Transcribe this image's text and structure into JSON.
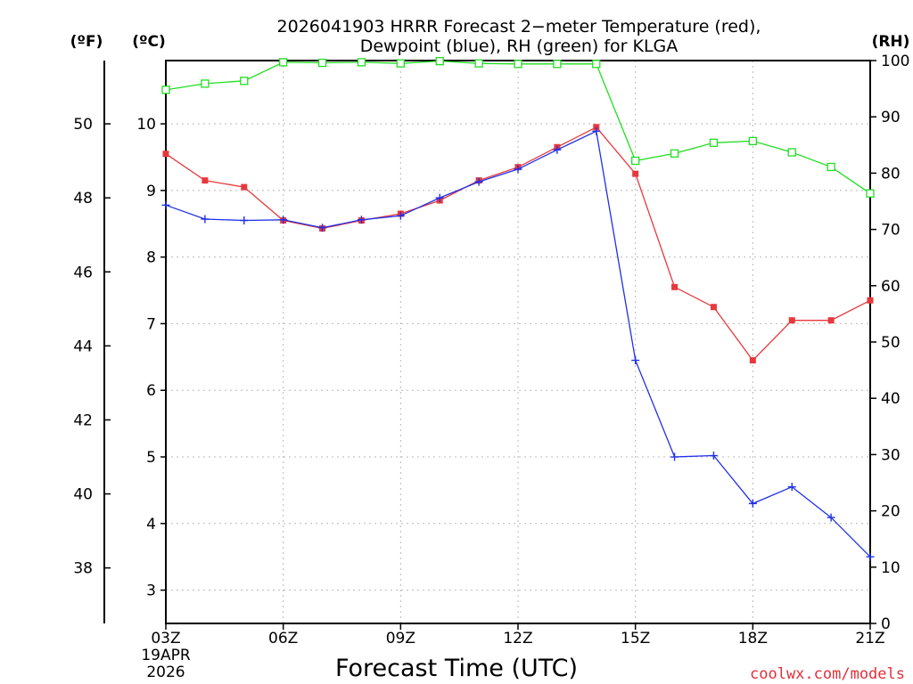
{
  "chart_data": {
    "type": "line",
    "title_line1": "2026041903 HRRR Forecast 2−meter Temperature (red),",
    "title_line2": "Dewpoint (blue), RH (green) for KLGA",
    "xlabel": "Forecast Time (UTC)",
    "credit": "coolwx.com/models",
    "unit_f": "(ºF)",
    "unit_c": "(ºC)",
    "unit_rh": "(RH)",
    "x_hours": [
      3,
      4,
      5,
      6,
      7,
      8,
      9,
      10,
      11,
      12,
      13,
      14,
      15,
      16,
      17,
      18,
      19,
      20,
      21
    ],
    "x_ticks": [
      {
        "hour": 3,
        "label": "03Z"
      },
      {
        "hour": 6,
        "label": "06Z"
      },
      {
        "hour": 9,
        "label": "09Z"
      },
      {
        "hour": 12,
        "label": "12Z"
      },
      {
        "hour": 15,
        "label": "15Z"
      },
      {
        "hour": 18,
        "label": "18Z"
      },
      {
        "hour": 21,
        "label": "21Z"
      }
    ],
    "date_label_line1": "19APR",
    "date_label_line2": "2026",
    "xlim": [
      3,
      21
    ],
    "ylim_c": [
      2.5,
      10.95
    ],
    "ylim_rh": [
      0,
      100
    ],
    "y_ticks_c": [
      "3",
      "4",
      "5",
      "6",
      "7",
      "8",
      "9",
      "10"
    ],
    "y_ticks_f": [
      "38",
      "40",
      "42",
      "44",
      "46",
      "48",
      "50"
    ],
    "y_ticks_rh": [
      "0",
      "10",
      "20",
      "30",
      "40",
      "50",
      "60",
      "70",
      "80",
      "90",
      "100"
    ],
    "series": [
      {
        "name": "Temperature",
        "unit": "°C",
        "color": "#e8383c",
        "marker": "filled-square",
        "values": [
          9.55,
          9.15,
          9.05,
          8.55,
          8.43,
          8.55,
          8.65,
          8.85,
          9.15,
          9.35,
          9.65,
          9.95,
          9.25,
          7.55,
          7.25,
          6.45,
          7.05,
          7.05,
          7.35
        ]
      },
      {
        "name": "Dewpoint",
        "unit": "°C",
        "color": "#2030e8",
        "marker": "plus",
        "values": [
          8.78,
          8.57,
          8.55,
          8.56,
          8.44,
          8.56,
          8.62,
          8.89,
          9.13,
          9.32,
          9.61,
          9.89,
          6.45,
          5.0,
          5.02,
          4.3,
          4.55,
          4.09,
          3.5
        ]
      },
      {
        "name": "RH",
        "unit": "%",
        "color": "#22dd22",
        "marker": "open-square",
        "values": [
          94.8,
          95.9,
          96.4,
          99.7,
          99.6,
          99.7,
          99.5,
          99.9,
          99.5,
          99.4,
          99.4,
          99.4,
          82.2,
          83.5,
          85.4,
          85.7,
          83.7,
          81.1,
          76.4
        ]
      }
    ]
  }
}
